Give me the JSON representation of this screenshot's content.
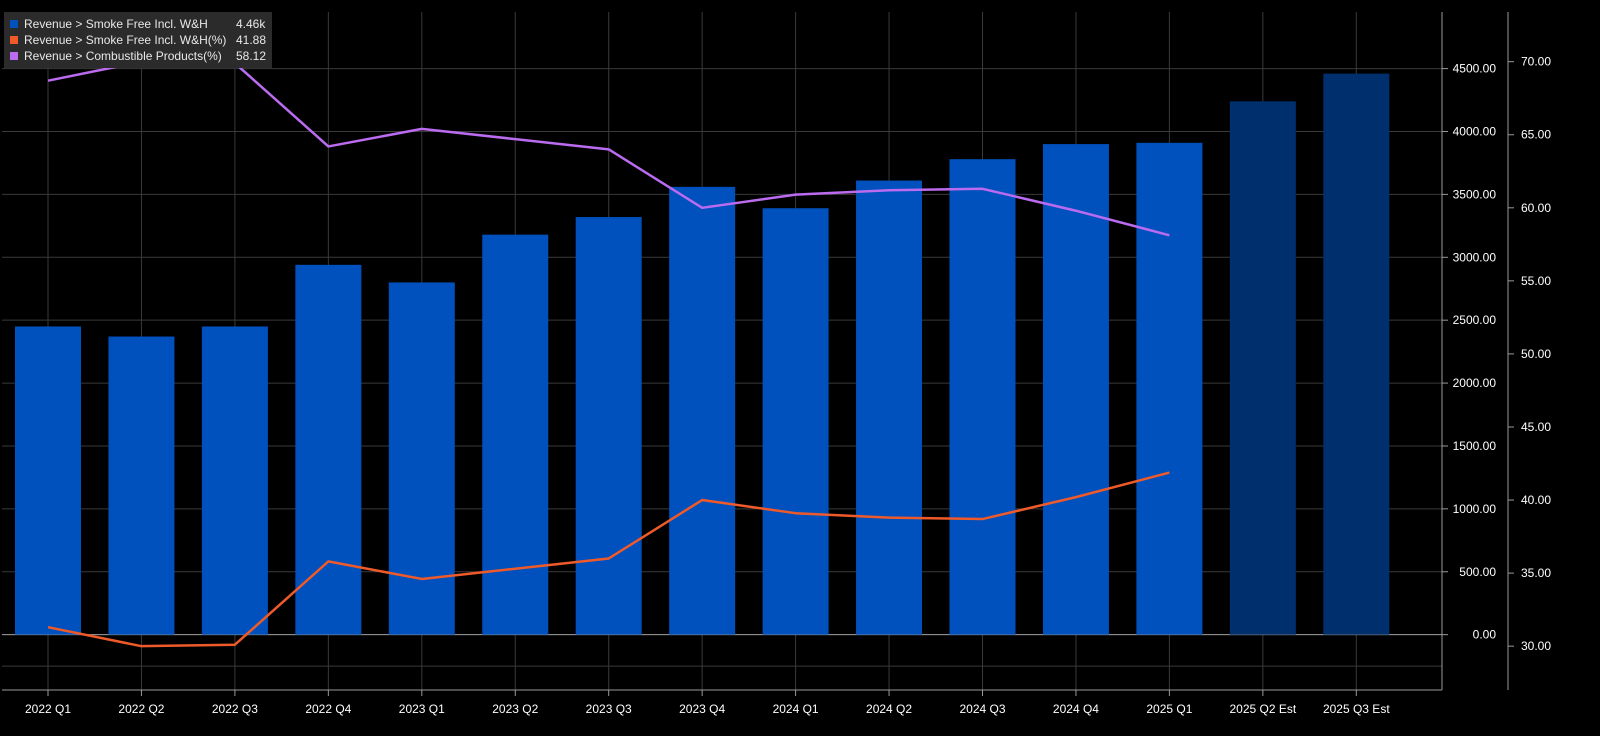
{
  "chart_data": {
    "type": "bar",
    "categories": [
      "2022 Q1",
      "2022 Q2",
      "2022 Q3",
      "2022 Q4",
      "2023 Q1",
      "2023 Q2",
      "2023 Q3",
      "2023 Q4",
      "2024 Q1",
      "2024 Q2",
      "2024 Q3",
      "2024 Q4",
      "2025 Q1",
      "2025 Q2 Est",
      "2025 Q3 Est"
    ],
    "estimate_flags": [
      false,
      false,
      false,
      false,
      false,
      false,
      false,
      false,
      false,
      false,
      false,
      false,
      false,
      true,
      true
    ],
    "series": [
      {
        "name": "Revenue > Smoke Free Incl. W&H",
        "type": "bar",
        "axis": "left",
        "color": "#0050bd",
        "estimate_color": "#002f6e",
        "values": [
          2450,
          2370,
          2450,
          2940,
          2800,
          3180,
          3320,
          3560,
          3390,
          3610,
          3780,
          3900,
          3910,
          4240,
          4460
        ]
      },
      {
        "name": "Revenue > Smoke Free Incl. W&H(%)",
        "type": "line",
        "axis": "right",
        "color": "#ee5a2a",
        "values": [
          31.3,
          30.0,
          30.1,
          35.8,
          34.6,
          35.3,
          36.0,
          40.0,
          39.1,
          38.8,
          38.7,
          40.2,
          41.88,
          null,
          null
        ]
      },
      {
        "name": "Revenue > Combustible Products(%)",
        "type": "line",
        "axis": "right",
        "color": "#bb6bf0",
        "values": [
          68.7,
          70.0,
          69.9,
          64.2,
          65.4,
          64.7,
          64.0,
          60.0,
          60.9,
          61.2,
          61.3,
          59.8,
          58.12,
          null,
          null
        ]
      }
    ],
    "legend": [
      {
        "label": "Revenue > Smoke Free Incl. W&H",
        "value": "4.46k",
        "color": "#0050bd"
      },
      {
        "label": "Revenue > Smoke Free Incl. W&H(%)",
        "value": "41.88",
        "color": "#ee5a2a"
      },
      {
        "label": "Revenue > Combustible Products(%)",
        "value": "58.12",
        "color": "#bb6bf0"
      }
    ],
    "left_axis": {
      "ticks": [
        "0.00",
        "500.00",
        "1000.00",
        "1500.00",
        "2000.00",
        "2500.00",
        "3000.00",
        "3500.00",
        "4000.00",
        "4500.00"
      ],
      "values": [
        0,
        500,
        1000,
        1500,
        2000,
        2500,
        3000,
        3500,
        4000,
        4500
      ],
      "ylim": [
        -440,
        4950
      ]
    },
    "right_axis": {
      "ticks": [
        "30.00",
        "35.00",
        "40.00",
        "45.00",
        "50.00",
        "55.00",
        "60.00",
        "65.00",
        "70.00"
      ],
      "values": [
        30,
        35,
        40,
        45,
        50,
        55,
        60,
        65,
        70
      ],
      "ylim": [
        27,
        73.4
      ]
    },
    "grid": true,
    "legend_position": "top-left",
    "background": "#000000"
  }
}
